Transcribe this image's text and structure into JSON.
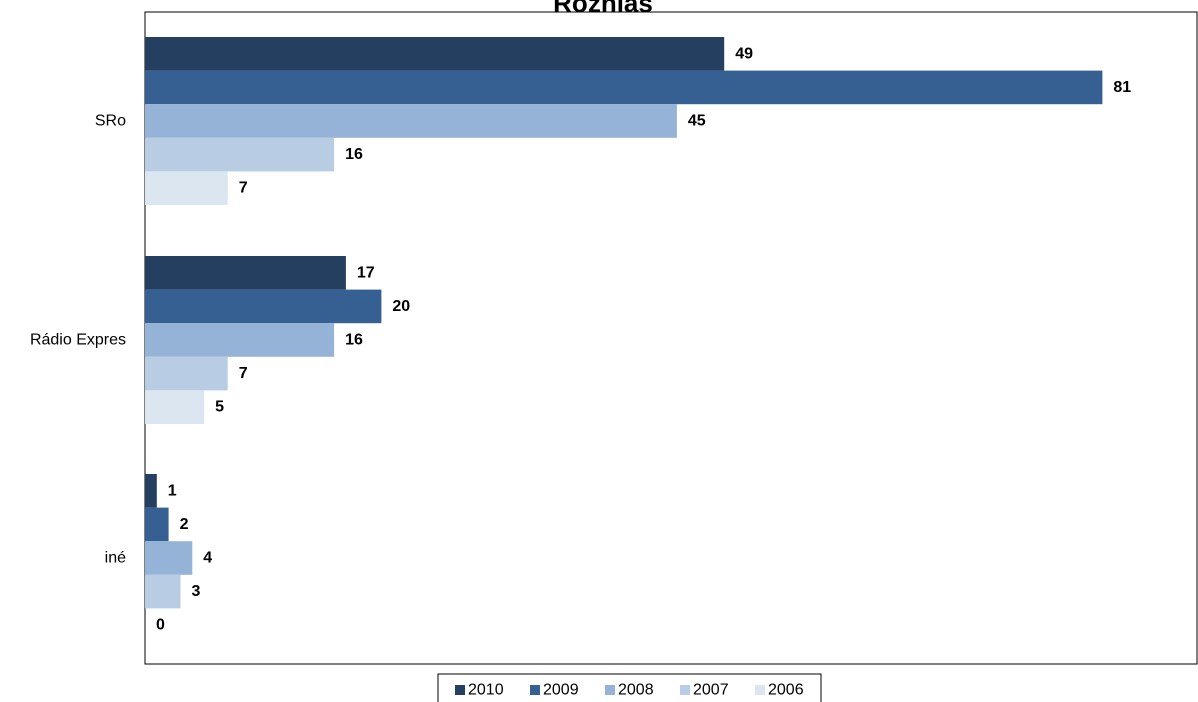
{
  "chart_data": {
    "type": "bar",
    "orientation": "horizontal",
    "title": "Rozhlas",
    "categories": [
      "SRo",
      "Rádio Expres",
      "iné"
    ],
    "series": [
      {
        "name": "2010",
        "color": "#243F60",
        "values": [
          49,
          17,
          1
        ]
      },
      {
        "name": "2009",
        "color": "#366092",
        "values": [
          81,
          20,
          2
        ]
      },
      {
        "name": "2008",
        "color": "#95B3D7",
        "values": [
          45,
          16,
          4
        ]
      },
      {
        "name": "2007",
        "color": "#B8CCE4",
        "values": [
          16,
          7,
          3
        ]
      },
      {
        "name": "2006",
        "color": "#DCE6F1",
        "values": [
          7,
          5,
          0
        ]
      }
    ],
    "xlim": [
      0,
      89
    ],
    "grid": false,
    "data_labels": true,
    "legend_position": "bottom"
  }
}
